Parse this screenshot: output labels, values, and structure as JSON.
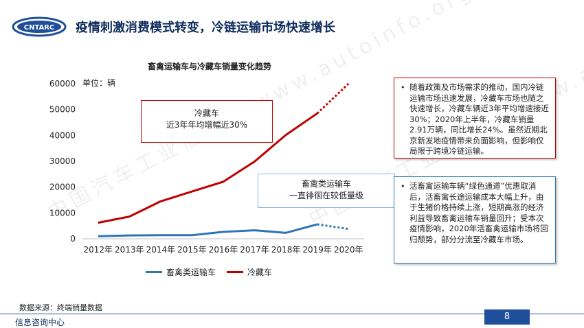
{
  "header": {
    "logo_text": "CNTARC",
    "title": "疫情刺激消费模式转变，冷链运输市场快速增长"
  },
  "watermark": {
    "text": "中国汽车工业信息网 www.autoinfo.org.cn"
  },
  "chart_data": {
    "type": "line",
    "title": "畜禽运输车与冷藏车销量变化趋势",
    "unit_label": "单位：辆",
    "categories": [
      "2012年",
      "2013年",
      "2014年",
      "2015年",
      "2016年",
      "2017年",
      "2018年",
      "2019年",
      "2020年"
    ],
    "yticks": [
      "0",
      "10000",
      "20000",
      "30000",
      "40000",
      "50000",
      "60000"
    ],
    "ylim": [
      0,
      60000
    ],
    "series": [
      {
        "name": "畜禽类运输车",
        "color": "#2e75b6",
        "values": [
          1000,
          1300,
          1400,
          1400,
          2700,
          3300,
          2300,
          5600,
          3800
        ],
        "dashed_last_segment": true
      },
      {
        "name": "冷藏车",
        "color": "#c00000",
        "values": [
          6200,
          8600,
          14500,
          18300,
          22100,
          29900,
          40200,
          48500,
          60000
        ],
        "dashed_last_segment": true
      }
    ],
    "legend_position": "bottom"
  },
  "annotations": {
    "cold": [
      "冷藏车",
      "近3年年均增幅近30%"
    ],
    "livestock": [
      "畜禽类运输车",
      "一直徘徊在较低量级"
    ]
  },
  "notes": {
    "cold": "随着政策及市场需求的推动，国内冷链运输市场迅速发展，冷藏车市场也随之快速增长，冷藏车辆近3年平均增速接近30%；2020年上半年，冷藏车销量2.91万辆，同比增长24%。虽然近期北京新发地疫情带来负面影响，但影响仅局限于跨境冷链运输。",
    "livestock": "活畜禽运输车辆“绿色通道”优惠取消后，活畜禽长途运输成本大幅上升，由于生猪价格持续上涨，短期高涨的经济利益导致畜禽运输车销量回升；受本次疫情影响，2020年活畜禽运输市场将回归颓势，部分分流至冷藏车市场。"
  },
  "footer": {
    "source": "数据来源：终端销量数据",
    "department": "信息咨询中心",
    "page_number": "8"
  }
}
